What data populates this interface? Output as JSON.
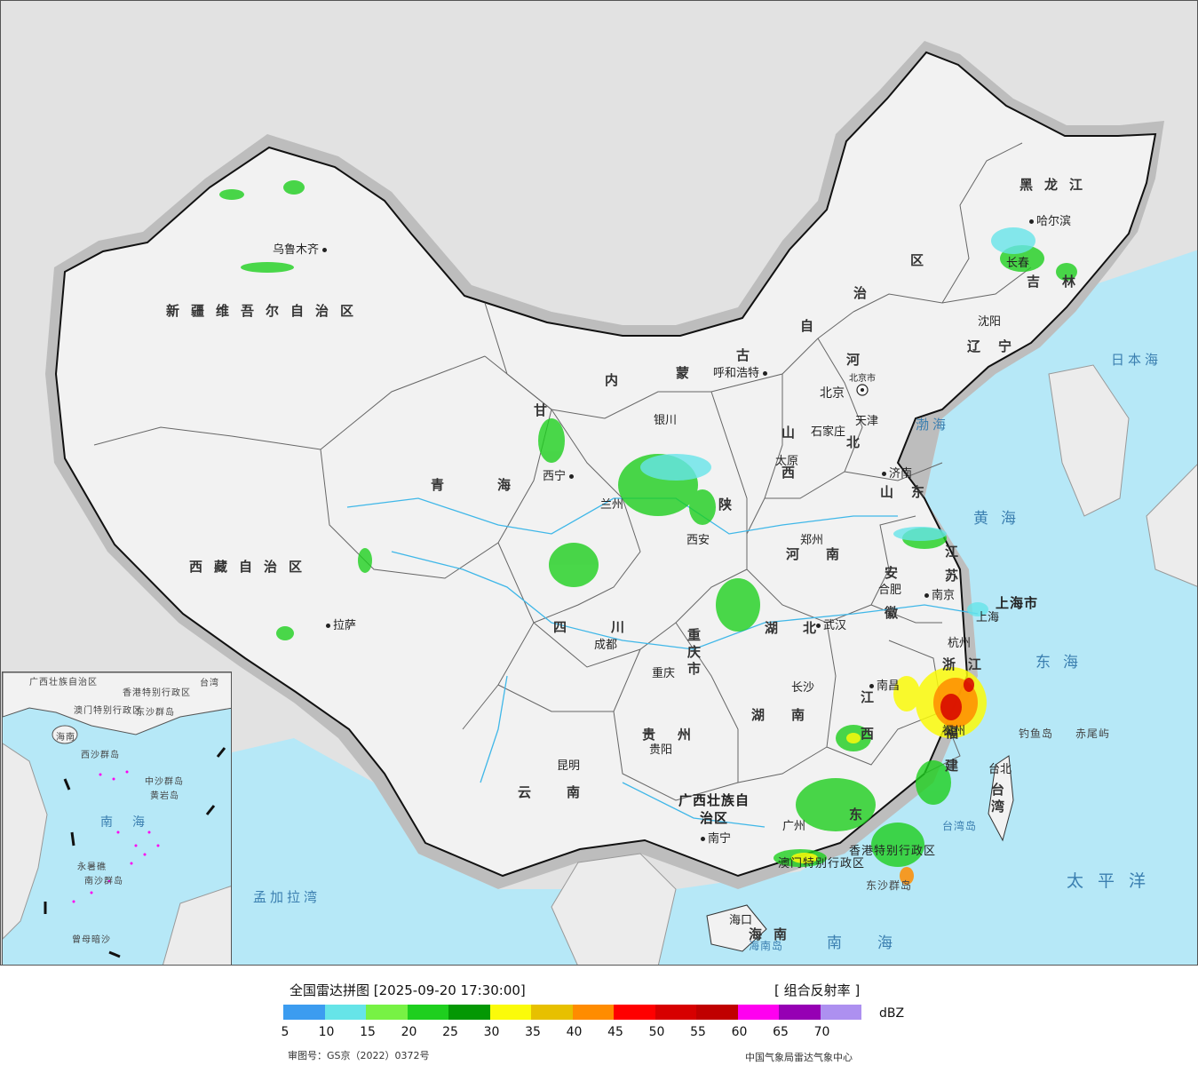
{
  "legend": {
    "title": "全国雷达拼图 [2025-09-20 17:30:00]",
    "product": "[ 组合反射率 ]",
    "unit": "dBZ",
    "ticks": [
      "5",
      "10",
      "15",
      "20",
      "25",
      "30",
      "35",
      "40",
      "45",
      "50",
      "55",
      "60",
      "65",
      "70"
    ],
    "colors": [
      "#3c9cf0",
      "#66e4e8",
      "#77f244",
      "#1ecf1e",
      "#049804",
      "#fbfb0a",
      "#e7c000",
      "#ff8c00",
      "#ff0000",
      "#d70000",
      "#c00000",
      "#ff00f0",
      "#9600b4",
      "#ad90f0"
    ],
    "approval_no": "审图号：GS京（2022）0372号",
    "producer": "中国气象局雷达气象中心"
  },
  "map": {
    "colors": {
      "sea": "#b6e8f7",
      "land": "#f2f2f2",
      "outside": "#e2e2e2",
      "border_glow": "#bdbdbd"
    },
    "regions": {
      "xinjiang": "新疆维吾尔自治区",
      "xizang": "西藏自治区",
      "qinghai": "青海",
      "gansu": "甘",
      "sichuan": "四川",
      "yunnan": "云南",
      "guizhou": "贵州",
      "guangxi": "广西壮族自治区",
      "guangdong": "东",
      "hunan": "湖南",
      "hubei": "湖北",
      "henan": "河南",
      "shanxi": "山西",
      "shaanxi": "陕",
      "neimenggu_1": "内",
      "neimenggu_2": "蒙",
      "neimenggu_3": "古",
      "neimenggu_4": "自",
      "neimenggu_5": "治",
      "neimenggu_6": "区",
      "heilongjiang": "黑龙江",
      "jilin": "吉林",
      "liaoning": "辽宁",
      "hebei_1": "河",
      "hebei_2": "北",
      "shandong": "山东",
      "jiangsu": "江苏",
      "anhui": "安徽",
      "zhejiang": "浙江",
      "jiangxi": "江西",
      "fujian": "福建",
      "chongqing": "重庆市",
      "shanghai": "上海市",
      "hainan": "海南",
      "taiwan": "台湾",
      "xianggang": "香港特别行政区",
      "aomen": "澳门特别行政区"
    },
    "seas": {
      "bohai": "渤海",
      "huanghai": "黄海",
      "donghai": "东海",
      "nanhai": "南海",
      "taipingyang": "太平洋",
      "ribenhai": "日本海",
      "mengjialawan": "孟加拉湾"
    },
    "islands": {
      "diaoyu": "钓鱼岛",
      "chiwei": "赤尾屿",
      "taiwan_island": "台湾岛",
      "hainan_island": "海南岛",
      "dongsha": "东沙群岛"
    },
    "cities": {
      "urumqi": "乌鲁木齐",
      "lhasa": "拉萨",
      "xining": "西宁",
      "lanzhou": "兰州",
      "yinchuan": "银川",
      "huhehaote": "呼和浩特",
      "beijing": "北京",
      "beijing_city": "北京市",
      "tianjin": "天津",
      "shijiazhuang": "石家庄",
      "taiyuan": "太原",
      "jinan": "济南",
      "zhengzhou": "郑州",
      "xian": "西安",
      "chengdu": "成都",
      "chongqing": "重庆",
      "wuhan": "武汉",
      "hefei": "合肥",
      "nanjing": "南京",
      "shanghai": "上海",
      "hangzhou": "杭州",
      "nanchang": "南昌",
      "changsha": "长沙",
      "guiyang": "贵阳",
      "kunming": "昆明",
      "nanning": "南宁",
      "guangzhou": "广州",
      "fuzhou": "福州",
      "taibei": "台北",
      "haikou": "海口",
      "shenyang": "沈阳",
      "changchun": "长春",
      "haerbin": "哈尔滨"
    },
    "inset": {
      "nanhai": "南海",
      "xisha": "西沙群岛",
      "zhongsha": "中沙群岛",
      "huangyan": "黄岩岛",
      "nansha": "南沙群岛",
      "yongshu": "永暑礁",
      "cengmu": "曾母暗沙",
      "guangxi": "广西壮族自治区",
      "xianggang": "香港特别行政区",
      "aomen": "澳门特别行政区",
      "hainan": "海南",
      "dongsha": "东沙群岛",
      "taiwan": "台湾"
    }
  }
}
